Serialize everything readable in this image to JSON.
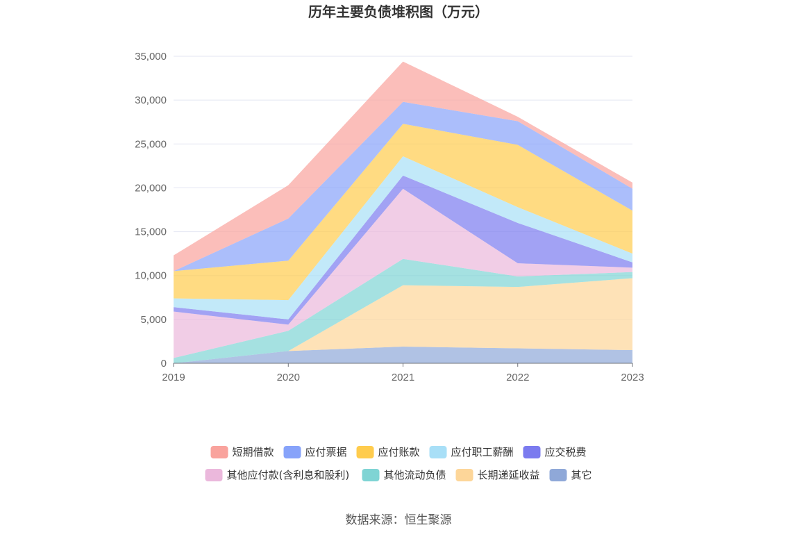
{
  "chart_data": {
    "type": "area",
    "stacked": true,
    "title": "历年主要负债堆积图（万元）",
    "source": "数据来源：恒生聚源",
    "categories": [
      "2019",
      "2020",
      "2021",
      "2022",
      "2023"
    ],
    "ylim": [
      0,
      35000
    ],
    "yticks": [
      0,
      5000,
      10000,
      15000,
      20000,
      25000,
      30000,
      35000
    ],
    "ytick_labels": [
      "0",
      "5,000",
      "10,000",
      "15,000",
      "20,000",
      "25,000",
      "30,000",
      "35,000"
    ],
    "grid": true,
    "legend_position": "bottom",
    "series": [
      {
        "name": "其它",
        "color": "#8fa8d8",
        "values": [
          0,
          1400,
          1900,
          1700,
          1500
        ]
      },
      {
        "name": "长期递延收益",
        "color": "#fdd699",
        "values": [
          0,
          0,
          7000,
          7000,
          8200
        ]
      },
      {
        "name": "其他流动负债",
        "color": "#7fd4d4",
        "values": [
          600,
          2300,
          3000,
          1200,
          700
        ]
      },
      {
        "name": "其他应付款(含利息和股利)",
        "color": "#ebb8dc",
        "values": [
          5300,
          700,
          8000,
          1500,
          500
        ]
      },
      {
        "name": "应交税费",
        "color": "#7b7bef",
        "values": [
          500,
          600,
          1500,
          4600,
          600
        ]
      },
      {
        "name": "应付职工薪酬",
        "color": "#a8dff7",
        "values": [
          1000,
          2200,
          2200,
          1800,
          1000
        ]
      },
      {
        "name": "应付账款",
        "color": "#ffcc4d",
        "values": [
          3100,
          4500,
          3700,
          7100,
          4900
        ]
      },
      {
        "name": "应付票据",
        "color": "#87a3fa",
        "values": [
          0,
          4800,
          2500,
          2700,
          2500
        ]
      },
      {
        "name": "短期借款",
        "color": "#f9a39d",
        "values": [
          1800,
          3800,
          4600,
          500,
          700
        ]
      }
    ],
    "legend_order": [
      "短期借款",
      "应付票据",
      "应付账款",
      "应付职工薪酬",
      "应交税费",
      "其他应付款(含利息和股利)",
      "其他流动负债",
      "长期递延收益",
      "其它"
    ]
  }
}
